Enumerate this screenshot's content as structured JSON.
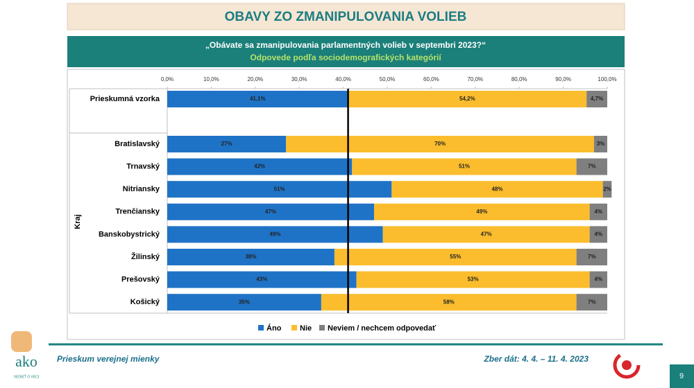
{
  "slide": {
    "header": "OBAVY ZO ZMANIPULOVANIA VOLIEB",
    "footer_left": "Prieskum verejnej mienky",
    "footer_right": "Zber dát: 4. 4. – 11. 4. 2023",
    "page_number": "9",
    "logo": "ako",
    "logo_tagline": "VEDIEŤ O VECI"
  },
  "chart_data": {
    "type": "bar",
    "orientation": "horizontal",
    "stacked": true,
    "title": "„Obávate sa zmanipulovania parlamentných volieb v septembri 2023?“",
    "subtitle": "Odpovede podľa sociodemografických kategórií",
    "group_label": "Kraj",
    "categories": [
      "Prieskumná vzorka",
      "Bratislavský",
      "Trnavský",
      "Nitriansky",
      "Trenčiansky",
      "Banskobystrický",
      "Žilinský",
      "Prešovský",
      "Košický"
    ],
    "series": [
      {
        "name": "Áno",
        "color": "#1f73c6",
        "values": [
          41.1,
          27,
          42,
          51,
          47,
          49,
          38,
          43,
          35
        ],
        "value_labels": [
          "41,1%",
          "27%",
          "42%",
          "51%",
          "47%",
          "49%",
          "38%",
          "43%",
          "35%"
        ]
      },
      {
        "name": "Nie",
        "color": "#fbbd2d",
        "values": [
          54.2,
          70,
          51,
          48,
          49,
          47,
          55,
          53,
          58
        ],
        "value_labels": [
          "54,2%",
          "70%",
          "51%",
          "48%",
          "49%",
          "47%",
          "55%",
          "53%",
          "58%"
        ]
      },
      {
        "name": "Neviem / nechcem odpovedať",
        "color": "#7f7f7f",
        "values": [
          4.7,
          3,
          7,
          2,
          4,
          4,
          7,
          4,
          7
        ],
        "value_labels": [
          "4,7%",
          "3%",
          "7%",
          "2%",
          "4%",
          "4%",
          "7%",
          "4%",
          "7%"
        ]
      }
    ],
    "xlim": [
      0,
      100
    ],
    "xticks": [
      {
        "value": 0,
        "label": "0,0%"
      },
      {
        "value": 10,
        "label": "10,0%"
      },
      {
        "value": 20,
        "label": "20,0%"
      },
      {
        "value": 30,
        "label": "30,0%"
      },
      {
        "value": 40,
        "label": "40,0%"
      },
      {
        "value": 50,
        "label": "50,0%"
      },
      {
        "value": 60,
        "label": "60,0%"
      },
      {
        "value": 70,
        "label": "70,0%"
      },
      {
        "value": 80,
        "label": "80,0%"
      },
      {
        "value": 90,
        "label": "90,0%"
      },
      {
        "value": 100,
        "label": "100,0%"
      }
    ],
    "reference_line": 41.1,
    "legend": "bottom"
  }
}
